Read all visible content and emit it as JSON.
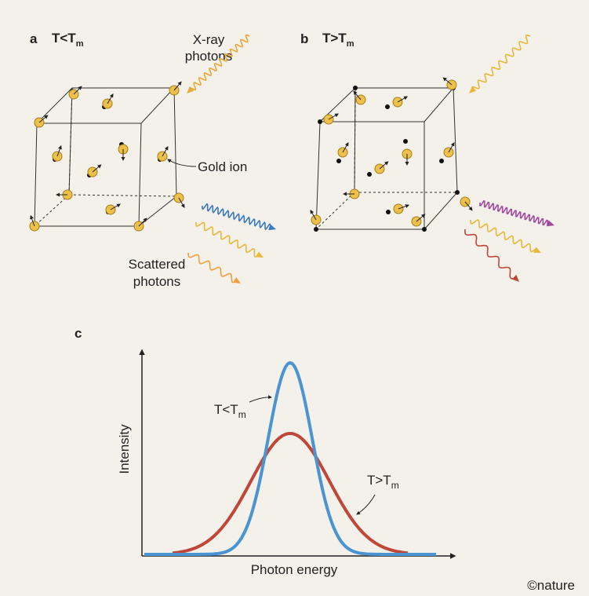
{
  "panels": {
    "a": {
      "letter": "a",
      "title": {
        "main": "T<T",
        "sub": "m"
      },
      "incoming": [
        "X-ray",
        "photons"
      ],
      "ion_label": "Gold ion",
      "scattered": [
        "Scattered",
        "photons"
      ]
    },
    "b": {
      "letter": "b",
      "title": {
        "main": "T>T",
        "sub": "m"
      }
    },
    "c": {
      "letter": "c",
      "curve_low": {
        "main": "T<T",
        "sub": "m"
      },
      "curve_high": {
        "main": "T>T",
        "sub": "m"
      },
      "y_label": "Intensity",
      "x_label": "Photon energy"
    }
  },
  "credit": "©nature"
}
